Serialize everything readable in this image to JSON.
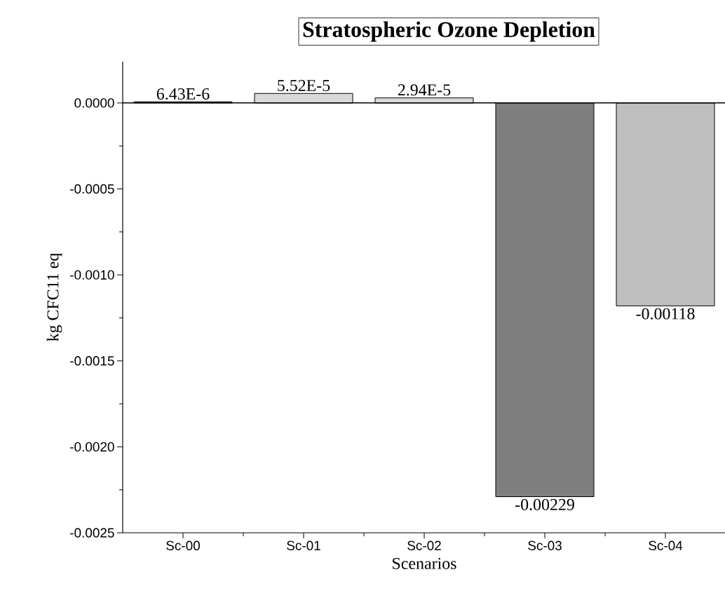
{
  "chart_data": {
    "type": "bar",
    "title": "Stratospheric Ozone Depletion",
    "xlabel": "Scenarios",
    "ylabel": "kg CFC11 eq",
    "categories": [
      "Sc-00",
      "Sc-01",
      "Sc-02",
      "Sc-03",
      "Sc-04"
    ],
    "values": [
      6.43e-06,
      5.52e-05,
      2.94e-05,
      -0.00229,
      -0.00118
    ],
    "value_labels": [
      "6.43E-6",
      "5.52E-5",
      "2.94E-5",
      "-0.00229",
      "-0.00118"
    ],
    "colors": [
      "#000000",
      "#d9d9d9",
      "#d9d9d9",
      "#7f7f7f",
      "#bfbfbf"
    ],
    "ylim": [
      -0.0025,
      0.00024
    ],
    "yticks": [
      {
        "value": -0.0025,
        "label": "-0.0025"
      },
      {
        "value": -0.002,
        "label": "-0.0020"
      },
      {
        "value": -0.0015,
        "label": "-0.0015"
      },
      {
        "value": -0.001,
        "label": "-0.0010"
      },
      {
        "value": -0.0005,
        "label": "-0.0005"
      },
      {
        "value": 0,
        "label": "0.0000"
      }
    ],
    "ref_lines": [
      {
        "axis": "y",
        "value": 0,
        "color": "#000000"
      }
    ]
  }
}
